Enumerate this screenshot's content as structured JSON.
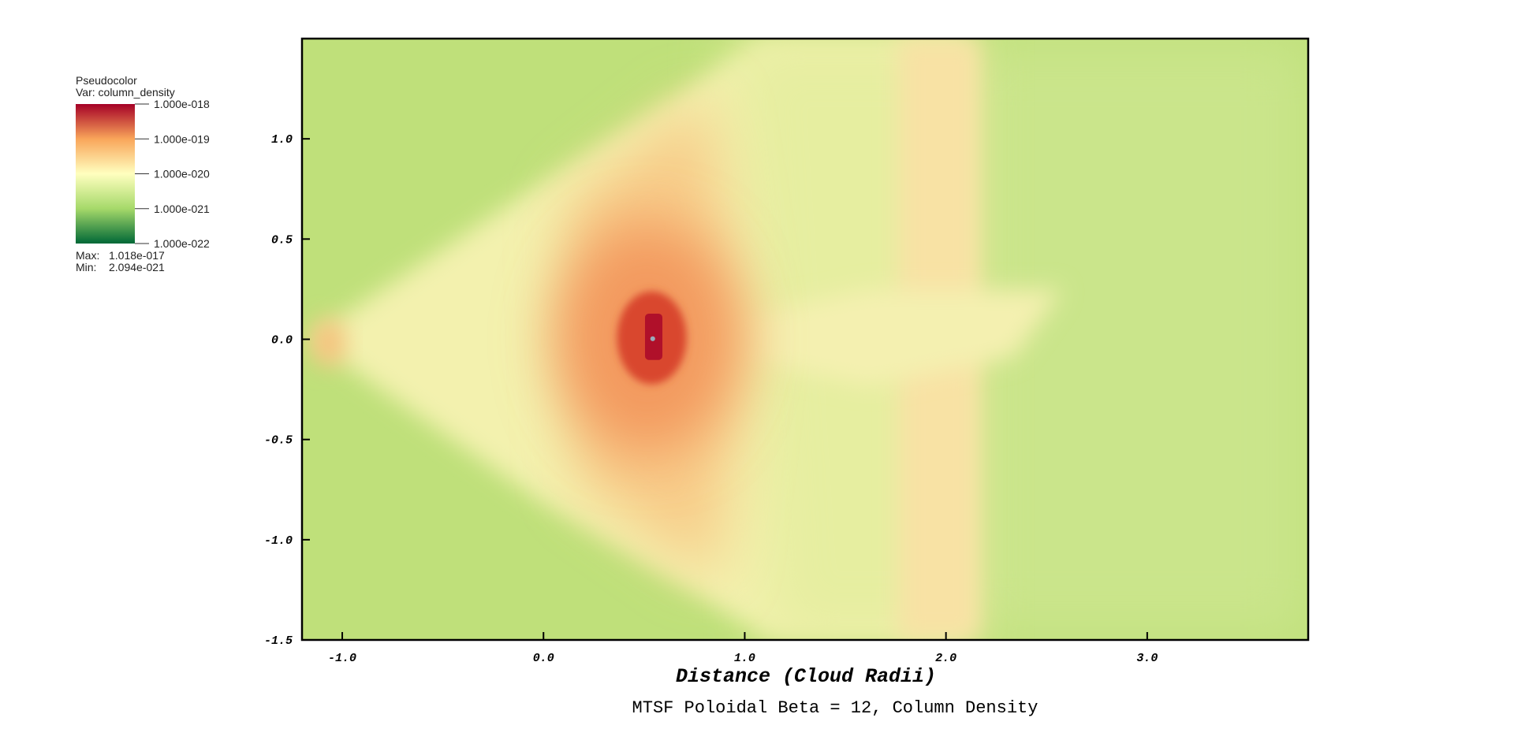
{
  "chart_data": {
    "type": "pseudocolor",
    "title": "MTSF Poloidal Beta = 12, Column Density",
    "x_label": "Distance (Cloud Radii)",
    "xlim": [
      -1.2,
      3.8
    ],
    "ylim": [
      -1.5,
      1.5
    ],
    "xticks": [
      {
        "value": -1,
        "label": "-1.0"
      },
      {
        "value": 0,
        "label": "0.0"
      },
      {
        "value": 1,
        "label": "1.0"
      },
      {
        "value": 2,
        "label": "2.0"
      },
      {
        "value": 3,
        "label": "3.0"
      }
    ],
    "yticks": [
      {
        "value": -1.5,
        "label": "-1.5"
      },
      {
        "value": -1,
        "label": "-1.0"
      },
      {
        "value": -0.5,
        "label": "-0.5"
      },
      {
        "value": 0,
        "label": "0.0"
      },
      {
        "value": 0.5,
        "label": "0.5"
      },
      {
        "value": 1,
        "label": "1.0"
      }
    ],
    "legend": {
      "plot_name": "Pseudocolor",
      "variable": "Var: column_density",
      "scale": "log",
      "lim": [
        1e-22,
        1e-18
      ],
      "ticks": [
        {
          "value": 1e-18,
          "label": "1.000e-018"
        },
        {
          "value": 1e-19,
          "label": "1.000e-019"
        },
        {
          "value": 1e-20,
          "label": "1.000e-020"
        },
        {
          "value": 1e-21,
          "label": "1.000e-021"
        },
        {
          "value": 1e-22,
          "label": "1.000e-022"
        }
      ],
      "colors": [
        "#006837",
        "#a6d96a",
        "#ffffbf",
        "#f9a55a",
        "#a50026"
      ],
      "max": {
        "label": "Max:",
        "value": 1.018e-17,
        "value_label": "1.018e-017"
      },
      "min": {
        "label": "Min:",
        "value": 2.094e-21,
        "value_label": "2.094e-021"
      }
    }
  }
}
